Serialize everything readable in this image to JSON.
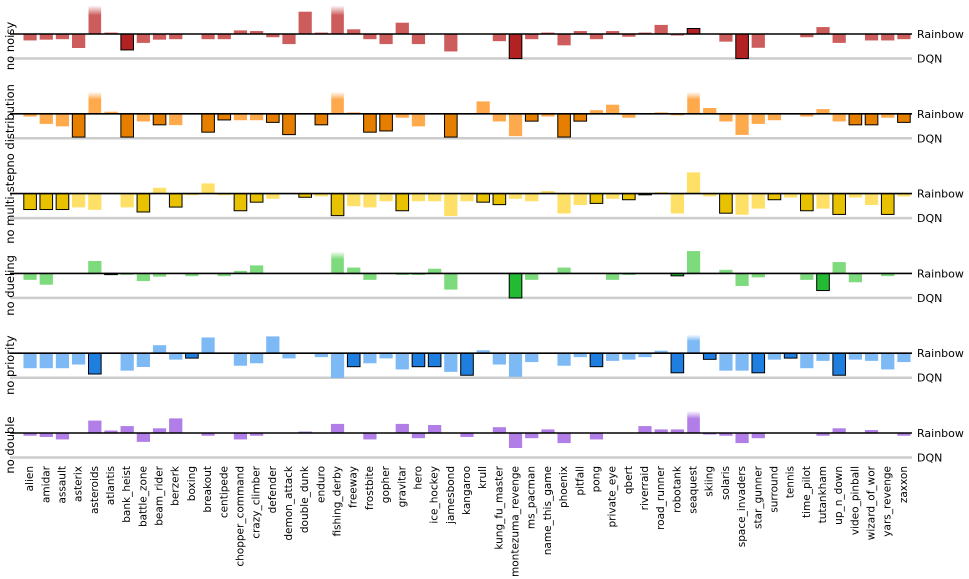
{
  "chart_data": {
    "type": "bar",
    "baseline_labels": {
      "top": "Rainbow",
      "bottom": "DQN"
    },
    "categories": [
      "alien",
      "amidar",
      "assault",
      "asterix",
      "asteroids",
      "atlantis",
      "bank_heist",
      "battle_zone",
      "beam_rider",
      "berzerk",
      "boxing",
      "breakout",
      "centipede",
      "chopper_command",
      "crazy_climber",
      "defender",
      "demon_attack",
      "double_dunk",
      "enduro",
      "fishing_derby",
      "freeway",
      "frostbite",
      "gopher",
      "gravitar",
      "hero",
      "ice_hockey",
      "jamesbond",
      "kangaroo",
      "krull",
      "kung_fu_master",
      "montezuma_revenge",
      "ms_pacman",
      "name_this_game",
      "phoenix",
      "pitfall",
      "pong",
      "private_eye",
      "qbert",
      "riverraid",
      "road_runner",
      "robotank",
      "seaquest",
      "skiing",
      "solaris",
      "space_invaders",
      "star_gunner",
      "surround",
      "tennis",
      "time_pilot",
      "tutankham",
      "up_n_down",
      "video_pinball",
      "wizard_of_wor",
      "yars_revenge",
      "zaxxon"
    ],
    "value_scale": "fraction of the Rainbow-to-DQN gap; positive = above the Rainbow baseline, -1 = DQN level",
    "series": [
      {
        "name": "no noisy",
        "color": "#cd5c5c",
        "highlight_color": "#b22222",
        "values": [
          -0.25,
          -0.22,
          -0.2,
          -0.56,
          1.3,
          0.05,
          -0.65,
          -0.35,
          -0.22,
          -0.2,
          0,
          -0.2,
          -0.2,
          0.15,
          0.12,
          -0.12,
          -0.4,
          1.0,
          0.05,
          1.3,
          0.2,
          -0.2,
          -0.4,
          0.5,
          -0.4,
          0,
          -0.7,
          0,
          0,
          -0.28,
          -1.0,
          -0.2,
          0.05,
          -0.45,
          0.12,
          -0.2,
          0.12,
          -0.1,
          0.05,
          0.4,
          -0.05,
          0.25,
          0,
          -0.3,
          -1.0,
          -0.55,
          0,
          0,
          -0.12,
          0.3,
          -0.35,
          0,
          -0.25,
          -0.25,
          -0.2
        ],
        "highlighted": [
          false,
          false,
          false,
          false,
          false,
          false,
          true,
          false,
          false,
          false,
          false,
          false,
          false,
          false,
          false,
          false,
          false,
          false,
          false,
          false,
          false,
          false,
          false,
          false,
          false,
          false,
          false,
          false,
          false,
          false,
          true,
          false,
          false,
          false,
          false,
          false,
          false,
          false,
          false,
          false,
          false,
          true,
          false,
          false,
          true,
          false,
          false,
          false,
          false,
          false,
          false,
          false,
          false,
          false,
          false
        ],
        "clipped": [
          false,
          false,
          false,
          false,
          true,
          false,
          false,
          false,
          false,
          false,
          false,
          false,
          false,
          false,
          false,
          false,
          false,
          false,
          false,
          true,
          false,
          false,
          false,
          false,
          false,
          false,
          false,
          false,
          false,
          false,
          false,
          false,
          false,
          false,
          false,
          false,
          false,
          false,
          false,
          false,
          false,
          false,
          false,
          false,
          false,
          false,
          false,
          false,
          false,
          false,
          false,
          false,
          false,
          false,
          false
        ]
      },
      {
        "name": "no distribution",
        "color": "#ffa94d",
        "highlight_color": "#e67e00",
        "values": [
          -0.1,
          -0.4,
          -0.5,
          -0.95,
          1.0,
          0.08,
          -0.95,
          -0.3,
          -0.45,
          -0.45,
          0,
          -0.75,
          -0.25,
          -0.25,
          -0.25,
          -0.35,
          -0.85,
          0,
          -0.45,
          1.0,
          0.05,
          -0.75,
          -0.7,
          -0.15,
          -0.5,
          0,
          -0.95,
          0,
          0.55,
          -0.3,
          -0.9,
          -0.3,
          -0.1,
          -0.95,
          -0.3,
          0.15,
          0.4,
          -0.15,
          0,
          0.05,
          -0.05,
          1.0,
          0.25,
          -0.3,
          -0.85,
          -0.4,
          -0.25,
          0,
          -0.1,
          0.2,
          -0.3,
          -0.45,
          -0.45,
          -0.15,
          -0.35
        ],
        "highlighted": [
          false,
          false,
          false,
          true,
          false,
          false,
          true,
          false,
          true,
          false,
          false,
          true,
          true,
          false,
          false,
          true,
          true,
          false,
          true,
          false,
          false,
          true,
          true,
          false,
          false,
          false,
          true,
          false,
          false,
          false,
          false,
          true,
          false,
          true,
          true,
          false,
          false,
          false,
          false,
          false,
          false,
          false,
          false,
          false,
          false,
          false,
          false,
          false,
          false,
          false,
          false,
          true,
          true,
          false,
          true
        ],
        "clipped": [
          false,
          false,
          false,
          false,
          true,
          false,
          false,
          false,
          false,
          false,
          false,
          false,
          false,
          false,
          false,
          false,
          false,
          false,
          false,
          true,
          false,
          false,
          false,
          false,
          false,
          false,
          false,
          false,
          false,
          false,
          false,
          false,
          false,
          false,
          false,
          false,
          false,
          false,
          false,
          false,
          false,
          true,
          false,
          false,
          false,
          false,
          false,
          false,
          false,
          false,
          false,
          false,
          false,
          false,
          false
        ]
      },
      {
        "name": "no multi-step",
        "color": "#ffe066",
        "highlight_color": "#e8c100",
        "values": [
          -0.65,
          -0.65,
          -0.65,
          -0.55,
          -0.65,
          0,
          -0.55,
          -0.75,
          0.25,
          -0.55,
          -0.05,
          0.45,
          -0.05,
          -0.7,
          -0.35,
          -0.2,
          0,
          -0.15,
          -0.1,
          -0.9,
          -0.5,
          -0.55,
          -0.3,
          -0.7,
          -0.3,
          -0.3,
          -0.9,
          -0.3,
          -0.35,
          -0.45,
          -0.2,
          -0.3,
          0.1,
          -0.8,
          -0.45,
          -0.4,
          -0.2,
          -0.25,
          -0.05,
          0.05,
          -0.8,
          0.95,
          -0.1,
          -0.8,
          -0.85,
          -0.6,
          -0.25,
          -0.15,
          -0.7,
          -0.6,
          -0.85,
          -0.15,
          -0.45,
          -0.85,
          -0.1
        ],
        "highlighted": [
          true,
          true,
          true,
          false,
          false,
          false,
          false,
          true,
          false,
          true,
          false,
          false,
          false,
          true,
          true,
          false,
          false,
          true,
          false,
          true,
          false,
          false,
          false,
          true,
          false,
          false,
          false,
          false,
          true,
          true,
          false,
          false,
          false,
          false,
          false,
          true,
          false,
          true,
          true,
          false,
          false,
          false,
          false,
          true,
          false,
          false,
          true,
          false,
          true,
          false,
          true,
          false,
          false,
          true,
          false
        ],
        "clipped": [
          false,
          false,
          false,
          false,
          false,
          false,
          false,
          false,
          false,
          false,
          false,
          false,
          false,
          false,
          false,
          false,
          false,
          false,
          false,
          false,
          false,
          false,
          false,
          false,
          false,
          false,
          false,
          false,
          false,
          false,
          false,
          false,
          false,
          false,
          false,
          false,
          false,
          false,
          false,
          false,
          false,
          false,
          false,
          false,
          false,
          false,
          false,
          false,
          false,
          false,
          false,
          false,
          false,
          false,
          false
        ]
      },
      {
        "name": "no dueling",
        "color": "#7ddb7d",
        "highlight_color": "#22bb33",
        "values": [
          -0.25,
          -0.45,
          0,
          0,
          0.55,
          -0.05,
          -0.05,
          -0.3,
          -0.12,
          0,
          -0.1,
          0,
          -0.1,
          0.1,
          0.35,
          0,
          0,
          0,
          0,
          1.0,
          0.25,
          -0.25,
          0,
          -0.05,
          -0.05,
          0.2,
          -0.65,
          0,
          0,
          0,
          -1.0,
          -0.25,
          0,
          0.25,
          0,
          0,
          -0.25,
          -0.05,
          0,
          0,
          -0.1,
          1.0,
          0,
          0.15,
          -0.5,
          -0.15,
          0,
          0,
          -0.25,
          -0.7,
          0.5,
          -0.35,
          0,
          -0.1,
          0
        ],
        "highlighted": [
          false,
          false,
          false,
          false,
          false,
          true,
          false,
          false,
          false,
          false,
          false,
          false,
          false,
          false,
          false,
          false,
          false,
          false,
          false,
          false,
          false,
          false,
          false,
          false,
          false,
          false,
          false,
          false,
          false,
          false,
          true,
          false,
          false,
          false,
          false,
          false,
          false,
          false,
          false,
          false,
          true,
          false,
          false,
          false,
          false,
          false,
          false,
          false,
          false,
          true,
          false,
          false,
          false,
          false,
          false
        ],
        "clipped": [
          false,
          false,
          false,
          false,
          false,
          false,
          false,
          false,
          false,
          false,
          false,
          false,
          false,
          false,
          false,
          false,
          false,
          false,
          false,
          true,
          false,
          false,
          false,
          false,
          false,
          false,
          false,
          false,
          false,
          false,
          false,
          false,
          false,
          false,
          false,
          false,
          false,
          false,
          false,
          false,
          false,
          false,
          false,
          false,
          false,
          false,
          false,
          false,
          false,
          false,
          false,
          false,
          false,
          false,
          false
        ]
      },
      {
        "name": "no priority",
        "color": "#7db9f5",
        "highlight_color": "#1f7fe0",
        "values": [
          -0.6,
          -0.6,
          -0.6,
          -0.45,
          -0.85,
          0,
          -0.7,
          -0.55,
          0.35,
          -0.25,
          -0.2,
          0.7,
          0,
          -0.5,
          -0.4,
          0.75,
          -0.2,
          0,
          -0.15,
          -1.0,
          -0.55,
          -0.4,
          -0.2,
          -0.65,
          -0.55,
          -0.55,
          -0.75,
          -0.9,
          0.12,
          -0.45,
          -0.95,
          -0.35,
          0,
          -0.5,
          -0.15,
          -0.55,
          -0.3,
          -0.25,
          -0.15,
          0.1,
          -0.8,
          0.85,
          -0.25,
          -0.7,
          -0.7,
          -0.8,
          -0.25,
          -0.2,
          -0.6,
          -0.3,
          -0.9,
          -0.25,
          -0.3,
          -0.65,
          -0.35
        ],
        "highlighted": [
          false,
          false,
          false,
          false,
          true,
          false,
          false,
          false,
          false,
          false,
          true,
          false,
          false,
          false,
          false,
          false,
          false,
          false,
          false,
          false,
          true,
          false,
          false,
          false,
          true,
          true,
          false,
          true,
          false,
          false,
          false,
          false,
          false,
          false,
          false,
          true,
          false,
          false,
          false,
          false,
          true,
          false,
          true,
          false,
          false,
          true,
          false,
          true,
          false,
          false,
          true,
          false,
          false,
          false,
          false
        ],
        "clipped": [
          false,
          false,
          false,
          false,
          false,
          false,
          false,
          false,
          false,
          false,
          false,
          false,
          false,
          false,
          false,
          false,
          false,
          false,
          false,
          false,
          false,
          false,
          false,
          false,
          false,
          false,
          false,
          false,
          false,
          false,
          false,
          false,
          false,
          false,
          false,
          false,
          false,
          false,
          false,
          false,
          false,
          true,
          false,
          false,
          false,
          false,
          false,
          false,
          false,
          false,
          false,
          false,
          false,
          false,
          false
        ]
      },
      {
        "name": "no double",
        "color": "#b07ee6",
        "highlight_color": "#8a45d6",
        "values": [
          -0.1,
          -0.15,
          -0.25,
          0,
          0.55,
          0.1,
          0.3,
          -0.35,
          0.2,
          0.65,
          0,
          -0.1,
          0,
          -0.25,
          -0.1,
          0,
          0,
          0.05,
          0,
          0.4,
          0,
          -0.25,
          0,
          0.4,
          -0.2,
          0.35,
          0,
          -0.15,
          0,
          0.25,
          -0.6,
          -0.2,
          0.15,
          -0.4,
          0,
          -0.25,
          0,
          0,
          0.3,
          0.15,
          0.15,
          1.0,
          -0.05,
          -0.1,
          -0.4,
          -0.2,
          0,
          0,
          0,
          -0.1,
          0.2,
          0,
          0.12,
          0,
          -0.1
        ],
        "highlighted": [
          false,
          false,
          false,
          false,
          false,
          false,
          false,
          false,
          false,
          false,
          false,
          false,
          false,
          false,
          false,
          false,
          false,
          false,
          false,
          false,
          false,
          false,
          false,
          false,
          false,
          false,
          false,
          false,
          false,
          false,
          false,
          false,
          false,
          false,
          false,
          false,
          false,
          false,
          false,
          false,
          false,
          false,
          false,
          false,
          false,
          false,
          false,
          false,
          false,
          false,
          false,
          false,
          false,
          false,
          false
        ],
        "clipped": [
          false,
          false,
          false,
          false,
          false,
          false,
          false,
          false,
          false,
          false,
          false,
          false,
          false,
          false,
          false,
          false,
          false,
          false,
          false,
          false,
          false,
          false,
          false,
          false,
          false,
          false,
          false,
          false,
          false,
          false,
          false,
          false,
          false,
          false,
          false,
          false,
          false,
          false,
          false,
          false,
          false,
          true,
          false,
          false,
          false,
          false,
          false,
          false,
          false,
          false,
          false,
          false,
          false,
          false,
          false
        ]
      }
    ]
  }
}
